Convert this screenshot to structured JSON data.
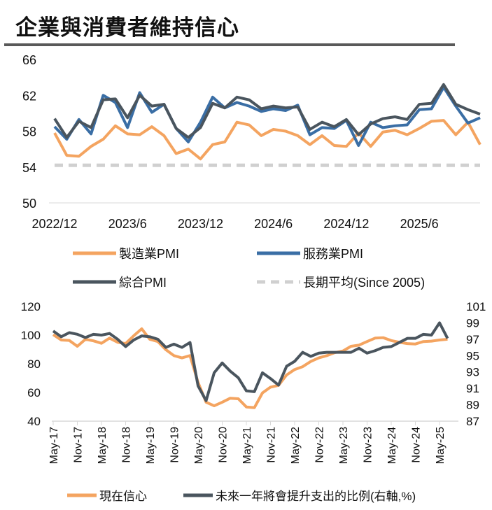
{
  "title": "企業與消費者維持信心",
  "chart_data": [
    {
      "type": "line",
      "x_tick_labels": [
        "2022/12",
        "2023/6",
        "2023/12",
        "2024/6",
        "2024/12",
        "2025/6"
      ],
      "x_start": "2022/12",
      "x_end": "2025/11",
      "ylim": [
        50,
        66
      ],
      "y_ticks": [
        50,
        54,
        58,
        62,
        66
      ],
      "grid": false,
      "legend_placement": "bottom",
      "series": [
        {
          "name": "製造業PMI",
          "color": "#F4A460",
          "values": [
            57.8,
            55.3,
            55.2,
            56.3,
            57.1,
            58.6,
            57.7,
            57.6,
            58.5,
            57.5,
            55.5,
            56.0,
            54.9,
            56.5,
            56.8,
            59.0,
            58.7,
            57.5,
            58.2,
            58.0,
            57.5,
            56.5,
            57.5,
            56.4,
            56.3,
            57.8,
            56.3,
            57.9,
            58.1,
            57.6,
            58.3,
            59.1,
            59.2,
            57.6,
            59.0,
            56.5
          ]
        },
        {
          "name": "服務業PMI",
          "color": "#3A6EA5",
          "values": [
            58.5,
            57.1,
            59.3,
            57.7,
            62.0,
            61.2,
            58.4,
            62.3,
            60.1,
            61.0,
            58.3,
            56.8,
            59.0,
            61.8,
            60.6,
            61.2,
            60.8,
            60.2,
            60.5,
            60.3,
            60.9,
            57.6,
            58.4,
            58.3,
            59.2,
            56.4,
            59.0,
            58.4,
            58.6,
            58.7,
            60.4,
            60.5,
            62.9,
            60.8,
            58.9,
            59.5
          ]
        },
        {
          "name": "綜合PMI",
          "color": "#4A555E",
          "values": [
            59.4,
            57.3,
            59.1,
            58.4,
            61.5,
            61.6,
            59.5,
            62.0,
            60.8,
            61.0,
            58.3,
            57.3,
            58.4,
            61.1,
            60.6,
            61.8,
            61.5,
            60.5,
            60.8,
            60.6,
            60.7,
            58.2,
            59.0,
            58.5,
            59.3,
            57.6,
            58.8,
            59.4,
            59.6,
            59.3,
            61.0,
            61.1,
            63.2,
            61.0,
            60.4,
            59.9
          ]
        },
        {
          "name": "長期平均(Since 2005)",
          "color": "#D0D0D0",
          "dashed": true,
          "constant": 54.2
        }
      ]
    },
    {
      "type": "line",
      "x_tick_labels": [
        "May-17",
        "Nov-17",
        "May-18",
        "Nov-18",
        "May-19",
        "Nov-19",
        "May-20",
        "Nov-20",
        "May-21",
        "Nov-21",
        "May-22",
        "Nov-22",
        "May-23",
        "Nov-23",
        "May-24",
        "Nov-24",
        "May-25"
      ],
      "x_start": "May-17",
      "ylim": [
        40,
        120
      ],
      "y_ticks": [
        40,
        60,
        80,
        100,
        120
      ],
      "y2lim": [
        87,
        101
      ],
      "y2_ticks": [
        87,
        89,
        91,
        93,
        95,
        97,
        99,
        101
      ],
      "grid": false,
      "legend_placement": "bottom",
      "series": [
        {
          "name": "現在信心",
          "color": "#F4A460",
          "axis": "left",
          "values": [
            100.3,
            96.6,
            96.3,
            92.2,
            97.1,
            96.0,
            94.3,
            97.9,
            95.0,
            94.1,
            99.5,
            104.4,
            97.1,
            95.5,
            89.8,
            85.7,
            84.1,
            85.7,
            67.0,
            53.2,
            50.7,
            53.2,
            56.0,
            55.6,
            49.9,
            49.4,
            59.7,
            63.7,
            65.0,
            72.2,
            76.0,
            78.0,
            81.6,
            84.1,
            85.7,
            87.8,
            88.9,
            92.2,
            93.0,
            95.5,
            97.9,
            98.2,
            96.2,
            95.0,
            94.1,
            93.8,
            95.5,
            95.8,
            96.6,
            97.1
          ]
        },
        {
          "name": "未來一年將會提升支出的比例(右軸,%)",
          "color": "#4A555E",
          "axis": "right",
          "values": [
            98.0,
            97.3,
            97.8,
            97.6,
            97.2,
            97.6,
            97.5,
            97.7,
            97.0,
            96.1,
            96.9,
            97.4,
            97.3,
            97.0,
            96.0,
            96.4,
            96.0,
            96.6,
            91.3,
            89.5,
            92.9,
            94.1,
            93.1,
            92.3,
            90.7,
            90.6,
            92.9,
            92.2,
            91.4,
            93.7,
            94.3,
            95.4,
            94.9,
            95.3,
            95.4,
            95.4,
            95.4,
            95.4,
            95.9,
            95.3,
            95.6,
            96.0,
            96.1,
            96.6,
            97.1,
            97.1,
            97.6,
            97.5,
            99.0,
            97.1
          ]
        }
      ]
    }
  ]
}
